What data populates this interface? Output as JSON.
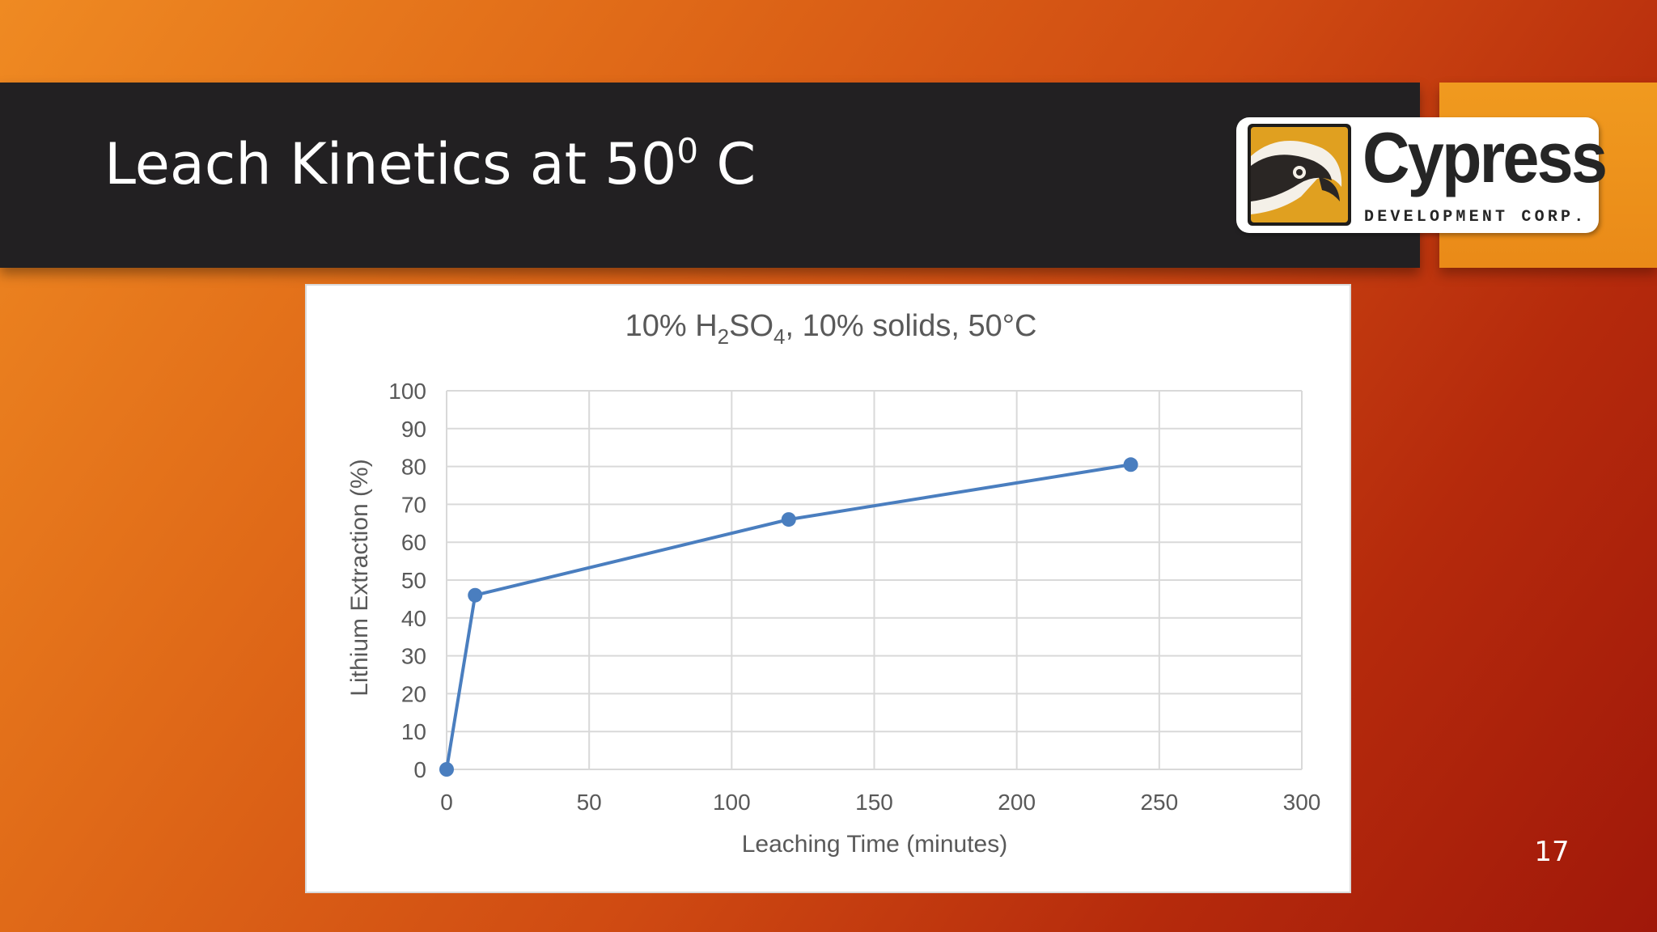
{
  "slide": {
    "title_main": "Leach Kinetics at 50",
    "title_sup": "0",
    "title_end": " C",
    "page_number": "17"
  },
  "logo": {
    "word": "Cypress",
    "sub": "DEVELOPMENT CORP."
  },
  "colors": {
    "series": "#4a7ebf",
    "grid": "#d9d9d9",
    "axis_text": "#595959",
    "title_bar": "#222022",
    "accent_orange": "#f09a1f"
  },
  "chart_data": {
    "type": "line",
    "title_parts": {
      "a": "10% H",
      "sub1": "2",
      "b": "SO",
      "sub2": "4",
      "c": ", 10% solids, 50°C"
    },
    "xlabel": "Leaching Time (minutes)",
    "ylabel": "Lithium Extraction (%)",
    "xlim": [
      0,
      300
    ],
    "ylim": [
      0,
      100
    ],
    "x_ticks": [
      "0",
      "50",
      "100",
      "150",
      "200",
      "250",
      "300"
    ],
    "y_ticks": [
      "0",
      "10",
      "20",
      "30",
      "40",
      "50",
      "60",
      "70",
      "80",
      "90",
      "100"
    ],
    "grid": true,
    "legend": false,
    "series": [
      {
        "x": [
          0,
          10,
          120,
          240
        ],
        "y": [
          0,
          46,
          66,
          80.5
        ]
      }
    ]
  }
}
